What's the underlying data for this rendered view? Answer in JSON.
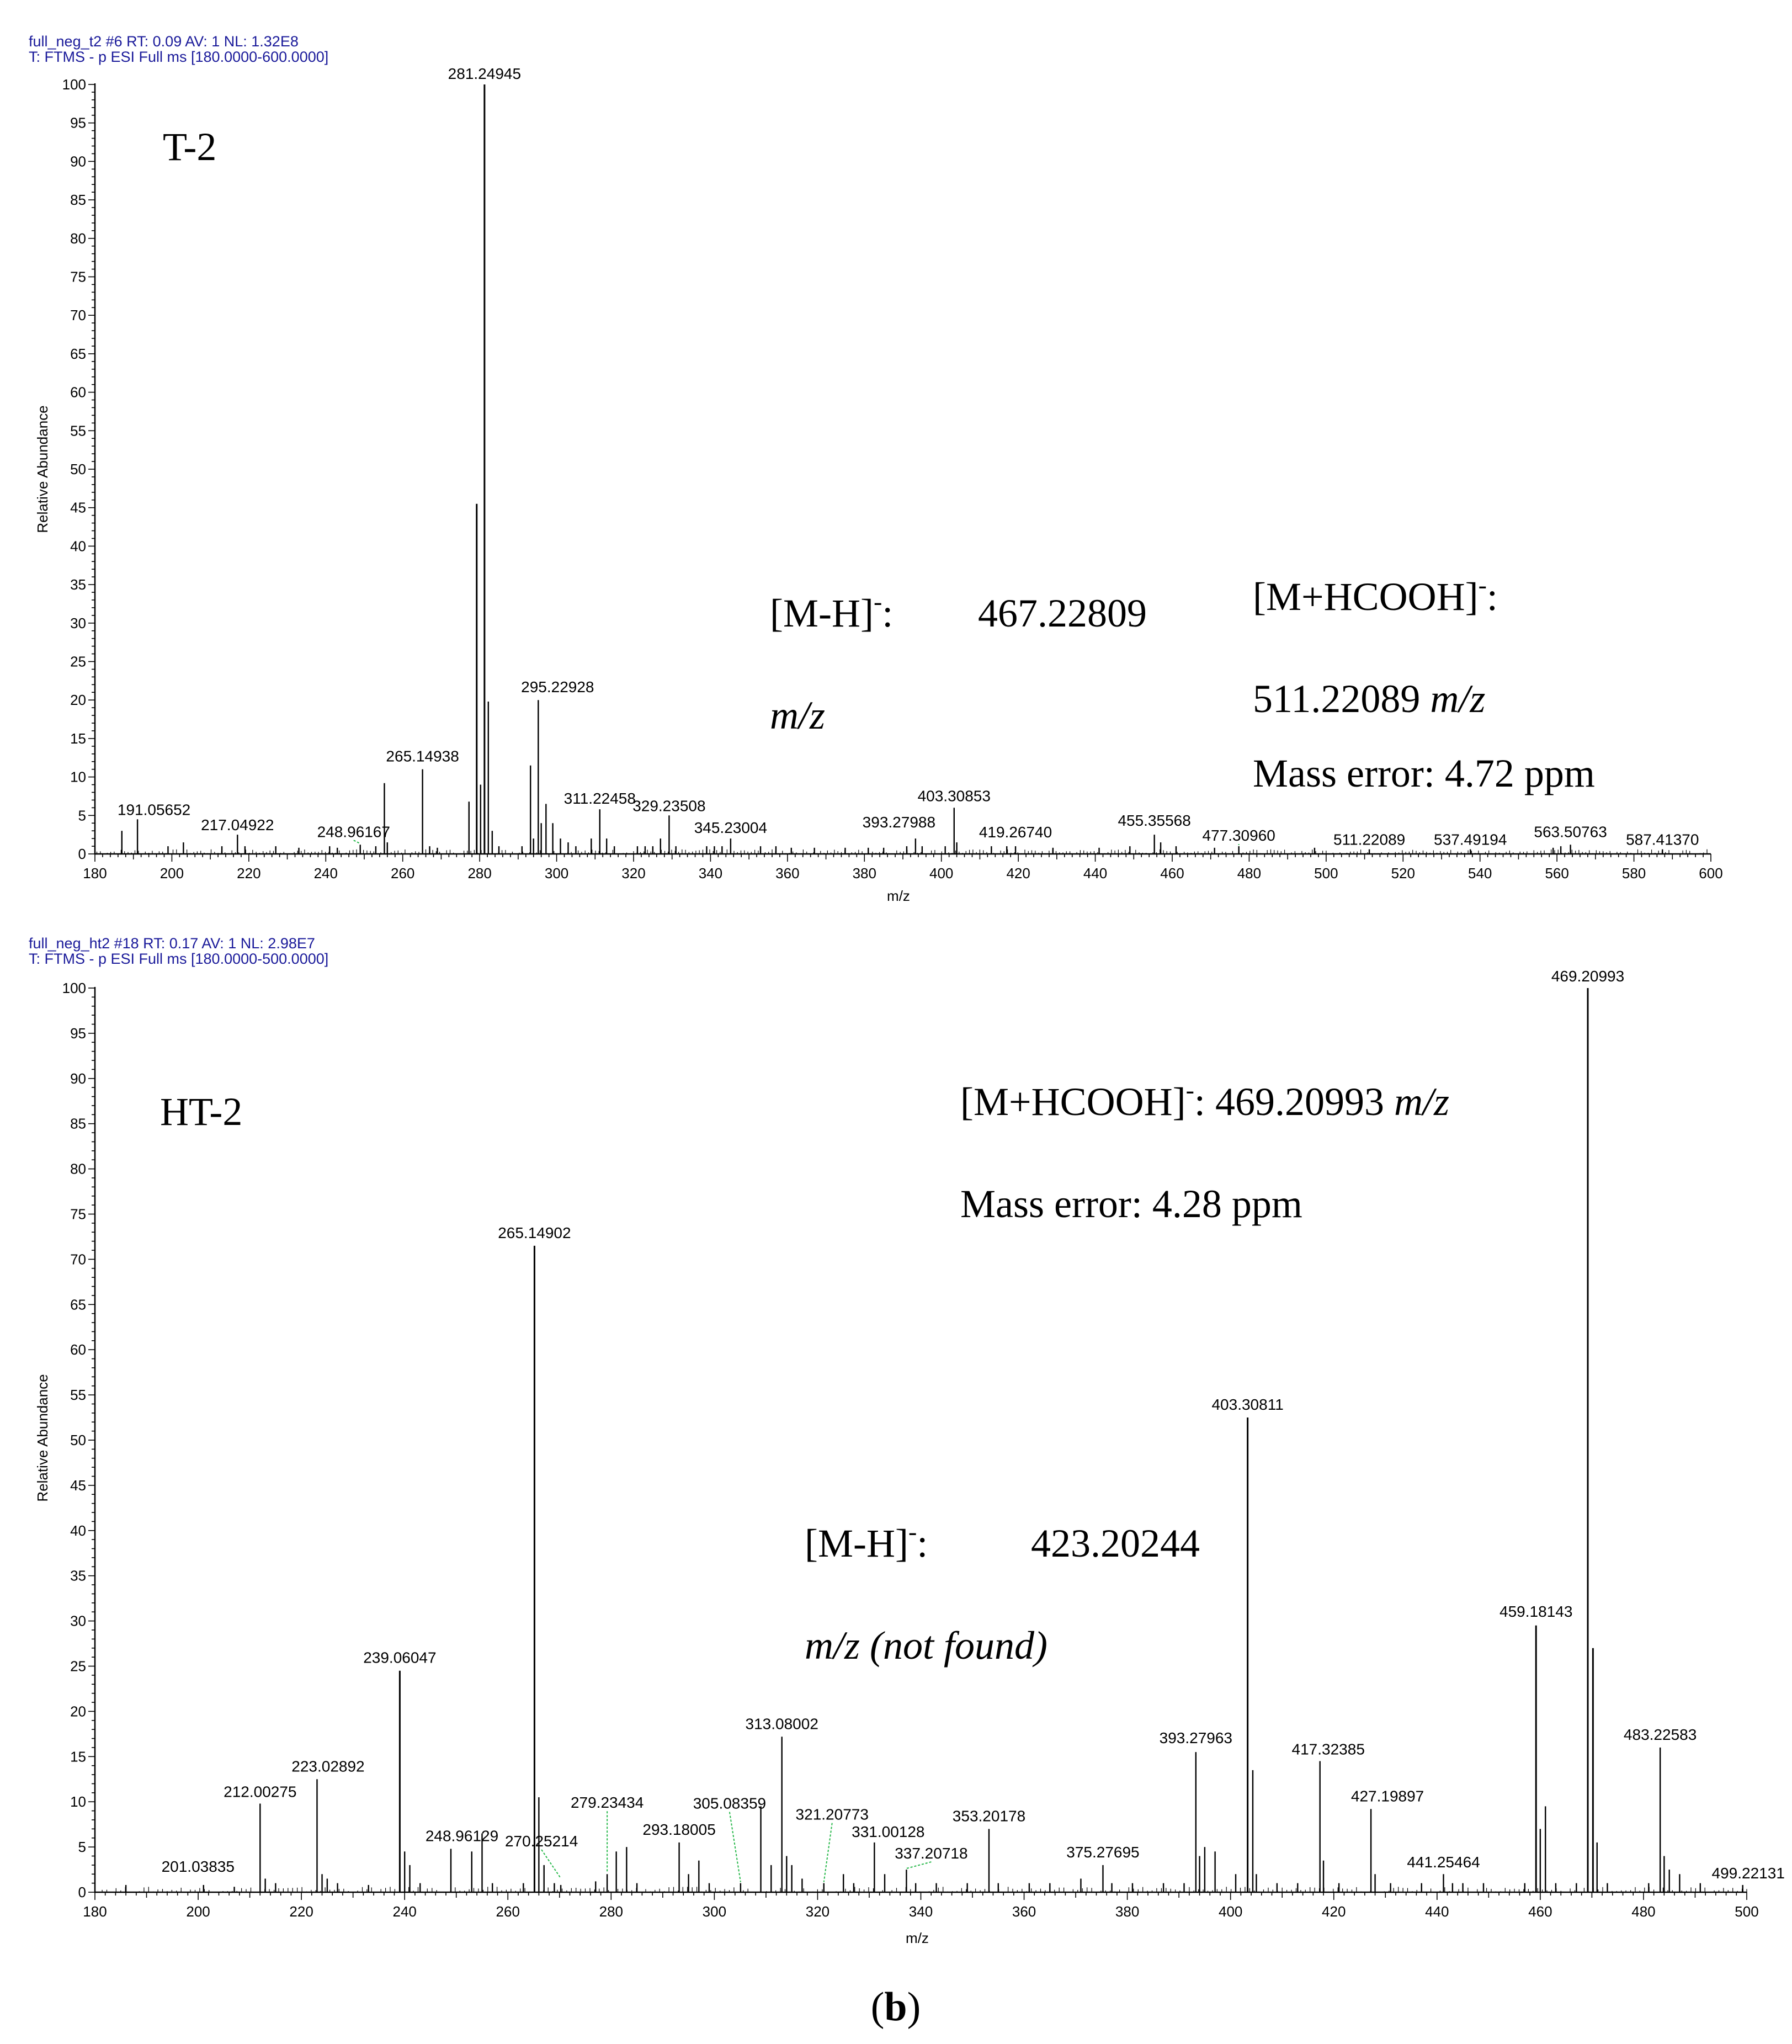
{
  "chart_data": [
    {
      "type": "bar",
      "header_line1": "full_neg_t2 #6   RT: 0.09   AV: 1   NL: 1.32E8",
      "header_line2": "T: FTMS - p ESI Full ms [180.0000-600.0000]",
      "xlabel": "m/z",
      "ylabel": "Relative Abundance",
      "xlim": [
        180,
        600
      ],
      "ylim": [
        0,
        100
      ],
      "xticks": [
        "180",
        "200",
        "220",
        "240",
        "260",
        "280",
        "300",
        "320",
        "340",
        "360",
        "380",
        "400",
        "420",
        "440",
        "460",
        "480",
        "500",
        "520",
        "540",
        "560",
        "580",
        "600"
      ],
      "yticks": [
        "0",
        "5",
        "10",
        "15",
        "20",
        "25",
        "30",
        "35",
        "40",
        "45",
        "50",
        "55",
        "60",
        "65",
        "70",
        "75",
        "80",
        "85",
        "90",
        "95",
        "100"
      ],
      "annotations": {
        "label": "T-2",
        "mh_label": "[M-H]",
        "mh_sup": "-",
        "mh_colon": ":",
        "mh_value": "467.22809",
        "mh_unit": "m/z",
        "adduct_label": "[M+HCOOH]",
        "adduct_sup": "-",
        "adduct_colon": ":",
        "adduct_value": "511.22089",
        "adduct_unit": "m/z",
        "mass_error": "Mass error: 4.72 ppm"
      },
      "peaks": [
        {
          "x": 187.0,
          "y": 3
        },
        {
          "x": 191.06,
          "y": 4.5
        },
        {
          "x": 199.0,
          "y": 1
        },
        {
          "x": 203.0,
          "y": 1.5
        },
        {
          "x": 213.0,
          "y": 1
        },
        {
          "x": 217.05,
          "y": 2.5
        },
        {
          "x": 219.0,
          "y": 1
        },
        {
          "x": 227.0,
          "y": 1
        },
        {
          "x": 233.0,
          "y": 0.8
        },
        {
          "x": 241.0,
          "y": 1
        },
        {
          "x": 243.0,
          "y": 0.8
        },
        {
          "x": 248.96,
          "y": 1.2
        },
        {
          "x": 253.0,
          "y": 1
        },
        {
          "x": 255.23,
          "y": 9.2
        },
        {
          "x": 256.0,
          "y": 1.5
        },
        {
          "x": 265.15,
          "y": 11
        },
        {
          "x": 267.0,
          "y": 1
        },
        {
          "x": 269.0,
          "y": 0.8
        },
        {
          "x": 277.22,
          "y": 6.8
        },
        {
          "x": 279.23,
          "y": 45.5
        },
        {
          "x": 280.24,
          "y": 9
        },
        {
          "x": 281.25,
          "y": 100
        },
        {
          "x": 282.25,
          "y": 19.8
        },
        {
          "x": 283.26,
          "y": 3
        },
        {
          "x": 285.0,
          "y": 1
        },
        {
          "x": 291.0,
          "y": 1
        },
        {
          "x": 293.21,
          "y": 11.5
        },
        {
          "x": 294.0,
          "y": 2
        },
        {
          "x": 295.23,
          "y": 20
        },
        {
          "x": 296.0,
          "y": 4
        },
        {
          "x": 297.24,
          "y": 6.5
        },
        {
          "x": 299.0,
          "y": 4
        },
        {
          "x": 301.0,
          "y": 2
        },
        {
          "x": 303.0,
          "y": 1.5
        },
        {
          "x": 305.0,
          "y": 1
        },
        {
          "x": 309.0,
          "y": 2
        },
        {
          "x": 311.22,
          "y": 5.8
        },
        {
          "x": 313.0,
          "y": 2
        },
        {
          "x": 315.0,
          "y": 1
        },
        {
          "x": 321.0,
          "y": 1
        },
        {
          "x": 323.0,
          "y": 1
        },
        {
          "x": 325.0,
          "y": 1
        },
        {
          "x": 327.0,
          "y": 2
        },
        {
          "x": 329.24,
          "y": 5
        },
        {
          "x": 331.0,
          "y": 1
        },
        {
          "x": 339.0,
          "y": 1
        },
        {
          "x": 341.0,
          "y": 1
        },
        {
          "x": 343.0,
          "y": 1
        },
        {
          "x": 345.23,
          "y": 2
        },
        {
          "x": 353.0,
          "y": 1
        },
        {
          "x": 357.0,
          "y": 1
        },
        {
          "x": 361.0,
          "y": 0.8
        },
        {
          "x": 367.0,
          "y": 0.8
        },
        {
          "x": 375.0,
          "y": 0.8
        },
        {
          "x": 381.0,
          "y": 0.8
        },
        {
          "x": 385.0,
          "y": 0.8
        },
        {
          "x": 391.0,
          "y": 1
        },
        {
          "x": 393.28,
          "y": 2
        },
        {
          "x": 395.0,
          "y": 1
        },
        {
          "x": 401.0,
          "y": 1
        },
        {
          "x": 403.31,
          "y": 6
        },
        {
          "x": 404.0,
          "y": 1.5
        },
        {
          "x": 413.0,
          "y": 1
        },
        {
          "x": 417.0,
          "y": 1
        },
        {
          "x": 419.27,
          "y": 1
        },
        {
          "x": 429.0,
          "y": 0.8
        },
        {
          "x": 441.0,
          "y": 0.8
        },
        {
          "x": 449.0,
          "y": 1
        },
        {
          "x": 455.36,
          "y": 2.5
        },
        {
          "x": 457.0,
          "y": 1.5
        },
        {
          "x": 461.0,
          "y": 1
        },
        {
          "x": 471.0,
          "y": 0.8
        },
        {
          "x": 477.31,
          "y": 1
        },
        {
          "x": 497.0,
          "y": 0.8
        },
        {
          "x": 511.22,
          "y": 0.6
        },
        {
          "x": 537.49,
          "y": 0.6
        },
        {
          "x": 559.0,
          "y": 0.8
        },
        {
          "x": 561.0,
          "y": 1
        },
        {
          "x": 563.51,
          "y": 1.2
        },
        {
          "x": 587.41,
          "y": 0.6
        }
      ],
      "peak_labels": [
        {
          "x": 191.05652,
          "y": 4.5,
          "text": "191.05652"
        },
        {
          "x": 217.04922,
          "y": 2.5,
          "text": "217.04922"
        },
        {
          "x": 248.96167,
          "y": 1.2,
          "text": "248.96167"
        },
        {
          "x": 265.14938,
          "y": 11,
          "text": "265.14938"
        },
        {
          "x": 281.24945,
          "y": 100,
          "text": "281.24945"
        },
        {
          "x": 295.22928,
          "y": 20,
          "text": "295.22928"
        },
        {
          "x": 311.22458,
          "y": 5.8,
          "text": "311.22458"
        },
        {
          "x": 329.23508,
          "y": 5,
          "text": "329.23508"
        },
        {
          "x": 345.23004,
          "y": 2,
          "text": "345.23004"
        },
        {
          "x": 393.27988,
          "y": 2,
          "text": "393.27988"
        },
        {
          "x": 403.30853,
          "y": 6,
          "text": "403.30853"
        },
        {
          "x": 419.2674,
          "y": 1,
          "text": "419.26740"
        },
        {
          "x": 455.35568,
          "y": 2.5,
          "text": "455.35568"
        },
        {
          "x": 477.3096,
          "y": 1,
          "text": "477.30960"
        },
        {
          "x": 511.22089,
          "y": 0.6,
          "text": "511.22089"
        },
        {
          "x": 537.49194,
          "y": 0.6,
          "text": "537.49194"
        },
        {
          "x": 563.50763,
          "y": 1.2,
          "text": "563.50763"
        },
        {
          "x": 587.4137,
          "y": 0.6,
          "text": "587.41370"
        }
      ]
    },
    {
      "type": "bar",
      "header_line1": "full_neg_ht2 #18   RT: 0.17   AV: 1   NL: 2.98E7",
      "header_line2": "T: FTMS - p ESI Full ms [180.0000-500.0000]",
      "xlabel": "m/z",
      "ylabel": "Relative Abundance",
      "xlim": [
        180,
        500
      ],
      "ylim": [
        0,
        100
      ],
      "xticks": [
        "180",
        "200",
        "220",
        "240",
        "260",
        "280",
        "300",
        "320",
        "340",
        "360",
        "380",
        "400",
        "420",
        "440",
        "460",
        "480",
        "500"
      ],
      "yticks": [
        "0",
        "5",
        "10",
        "15",
        "20",
        "25",
        "30",
        "35",
        "40",
        "45",
        "50",
        "55",
        "60",
        "65",
        "70",
        "75",
        "80",
        "85",
        "90",
        "95",
        "100"
      ],
      "annotations": {
        "label": "HT-2",
        "adduct_label": "[M+HCOOH]",
        "adduct_sup": "-",
        "adduct_colon": ":",
        "adduct_value": "469.20993",
        "adduct_unit": "m/z",
        "mass_error": "Mass error: 4.28 ppm",
        "mh_label": "[M-H]",
        "mh_sup": "-",
        "mh_colon": ":",
        "mh_value": "423.20244",
        "mh_unit": "m/z (not found)"
      },
      "peaks": [
        {
          "x": 186.0,
          "y": 0.8
        },
        {
          "x": 201.04,
          "y": 0.8
        },
        {
          "x": 207.0,
          "y": 0.6
        },
        {
          "x": 212.0,
          "y": 9.8
        },
        {
          "x": 213.0,
          "y": 1.5
        },
        {
          "x": 215.0,
          "y": 1
        },
        {
          "x": 223.03,
          "y": 12.5
        },
        {
          "x": 224.0,
          "y": 2
        },
        {
          "x": 225.0,
          "y": 1.5
        },
        {
          "x": 227.0,
          "y": 1
        },
        {
          "x": 233.0,
          "y": 0.8
        },
        {
          "x": 239.06,
          "y": 24.5
        },
        {
          "x": 240.0,
          "y": 4.5
        },
        {
          "x": 241.0,
          "y": 3
        },
        {
          "x": 243.0,
          "y": 1
        },
        {
          "x": 248.96,
          "y": 4.8
        },
        {
          "x": 253.0,
          "y": 4.5
        },
        {
          "x": 255.0,
          "y": 6.5
        },
        {
          "x": 257.0,
          "y": 1
        },
        {
          "x": 263.0,
          "y": 1
        },
        {
          "x": 265.15,
          "y": 71.5
        },
        {
          "x": 266.0,
          "y": 10.5
        },
        {
          "x": 267.0,
          "y": 3
        },
        {
          "x": 269.0,
          "y": 1
        },
        {
          "x": 270.25,
          "y": 0.8
        },
        {
          "x": 277.0,
          "y": 1.2
        },
        {
          "x": 279.23,
          "y": 2
        },
        {
          "x": 281.0,
          "y": 4.5
        },
        {
          "x": 283.0,
          "y": 5
        },
        {
          "x": 285.0,
          "y": 1
        },
        {
          "x": 293.18,
          "y": 5.5
        },
        {
          "x": 295.0,
          "y": 2
        },
        {
          "x": 297.0,
          "y": 3.5
        },
        {
          "x": 299.0,
          "y": 1
        },
        {
          "x": 305.08,
          "y": 1
        },
        {
          "x": 309.0,
          "y": 9.5
        },
        {
          "x": 311.0,
          "y": 3
        },
        {
          "x": 313.08,
          "y": 17.2
        },
        {
          "x": 314.0,
          "y": 4
        },
        {
          "x": 315.0,
          "y": 3
        },
        {
          "x": 317.0,
          "y": 1.5
        },
        {
          "x": 321.21,
          "y": 1
        },
        {
          "x": 325.0,
          "y": 2
        },
        {
          "x": 327.0,
          "y": 1
        },
        {
          "x": 331.0,
          "y": 5.5
        },
        {
          "x": 333.0,
          "y": 2
        },
        {
          "x": 337.21,
          "y": 2.5
        },
        {
          "x": 339.0,
          "y": 1
        },
        {
          "x": 343.0,
          "y": 1
        },
        {
          "x": 349.0,
          "y": 1
        },
        {
          "x": 353.2,
          "y": 7
        },
        {
          "x": 355.0,
          "y": 1
        },
        {
          "x": 361.0,
          "y": 1
        },
        {
          "x": 365.0,
          "y": 1
        },
        {
          "x": 371.0,
          "y": 1.5
        },
        {
          "x": 375.28,
          "y": 3
        },
        {
          "x": 377.0,
          "y": 1
        },
        {
          "x": 381.0,
          "y": 1
        },
        {
          "x": 387.0,
          "y": 1
        },
        {
          "x": 391.0,
          "y": 1
        },
        {
          "x": 393.28,
          "y": 15.5
        },
        {
          "x": 394.0,
          "y": 4
        },
        {
          "x": 395.0,
          "y": 5
        },
        {
          "x": 397.0,
          "y": 4.5
        },
        {
          "x": 401.0,
          "y": 2
        },
        {
          "x": 403.31,
          "y": 52.5
        },
        {
          "x": 404.31,
          "y": 13.5
        },
        {
          "x": 405.0,
          "y": 2
        },
        {
          "x": 409.0,
          "y": 1
        },
        {
          "x": 413.0,
          "y": 1
        },
        {
          "x": 417.32,
          "y": 14.5
        },
        {
          "x": 418.0,
          "y": 3.5
        },
        {
          "x": 421.0,
          "y": 1
        },
        {
          "x": 427.2,
          "y": 9.2
        },
        {
          "x": 428.0,
          "y": 2
        },
        {
          "x": 431.0,
          "y": 1
        },
        {
          "x": 437.0,
          "y": 1
        },
        {
          "x": 441.25,
          "y": 2
        },
        {
          "x": 443.0,
          "y": 1
        },
        {
          "x": 445.0,
          "y": 1
        },
        {
          "x": 449.0,
          "y": 1
        },
        {
          "x": 457.0,
          "y": 1
        },
        {
          "x": 459.18,
          "y": 29.5
        },
        {
          "x": 460.0,
          "y": 7
        },
        {
          "x": 461.0,
          "y": 9.5
        },
        {
          "x": 463.0,
          "y": 1
        },
        {
          "x": 467.0,
          "y": 1
        },
        {
          "x": 469.21,
          "y": 100
        },
        {
          "x": 470.21,
          "y": 27
        },
        {
          "x": 471.0,
          "y": 5.5
        },
        {
          "x": 473.0,
          "y": 1
        },
        {
          "x": 481.0,
          "y": 1
        },
        {
          "x": 483.23,
          "y": 16
        },
        {
          "x": 484.0,
          "y": 4
        },
        {
          "x": 485.0,
          "y": 2.5
        },
        {
          "x": 487.0,
          "y": 2
        },
        {
          "x": 491.0,
          "y": 1
        },
        {
          "x": 499.22,
          "y": 0.8
        }
      ],
      "peak_labels": [
        {
          "x": 201.03835,
          "y": 0.8,
          "text": "201.03835"
        },
        {
          "x": 212.00275,
          "y": 9.8,
          "text": "212.00275"
        },
        {
          "x": 223.02892,
          "y": 12.5,
          "text": "223.02892"
        },
        {
          "x": 239.06047,
          "y": 24.5,
          "text": "239.06047"
        },
        {
          "x": 248.96129,
          "y": 4.8,
          "text": "248.96129"
        },
        {
          "x": 265.14902,
          "y": 71.5,
          "text": "265.14902"
        },
        {
          "x": 270.25214,
          "y": 0.8,
          "text": "270.25214"
        },
        {
          "x": 279.23434,
          "y": 2,
          "text": "279.23434"
        },
        {
          "x": 293.18005,
          "y": 5.5,
          "text": "293.18005"
        },
        {
          "x": 305.08359,
          "y": 1,
          "text": "305.08359"
        },
        {
          "x": 313.08002,
          "y": 17.2,
          "text": "313.08002"
        },
        {
          "x": 321.20773,
          "y": 1,
          "text": "321.20773"
        },
        {
          "x": 331.00128,
          "y": 5.5,
          "text": "331.00128"
        },
        {
          "x": 337.20718,
          "y": 2.5,
          "text": "337.20718"
        },
        {
          "x": 353.20178,
          "y": 7,
          "text": "353.20178"
        },
        {
          "x": 375.27695,
          "y": 3,
          "text": "375.27695"
        },
        {
          "x": 393.27963,
          "y": 15.5,
          "text": "393.27963"
        },
        {
          "x": 403.30811,
          "y": 52.5,
          "text": "403.30811"
        },
        {
          "x": 417.32385,
          "y": 14.5,
          "text": "417.32385"
        },
        {
          "x": 427.19897,
          "y": 9.2,
          "text": "427.19897"
        },
        {
          "x": 441.25464,
          "y": 2,
          "text": "441.25464"
        },
        {
          "x": 459.18143,
          "y": 29.5,
          "text": "459.18143"
        },
        {
          "x": 469.20993,
          "y": 100,
          "text": "469.20993"
        },
        {
          "x": 483.22583,
          "y": 16,
          "text": "483.22583"
        },
        {
          "x": 499.22131,
          "y": 0.8,
          "text": "499.22131"
        }
      ]
    }
  ],
  "caption": {
    "open": "(",
    "letter": "b",
    "close": ")"
  }
}
